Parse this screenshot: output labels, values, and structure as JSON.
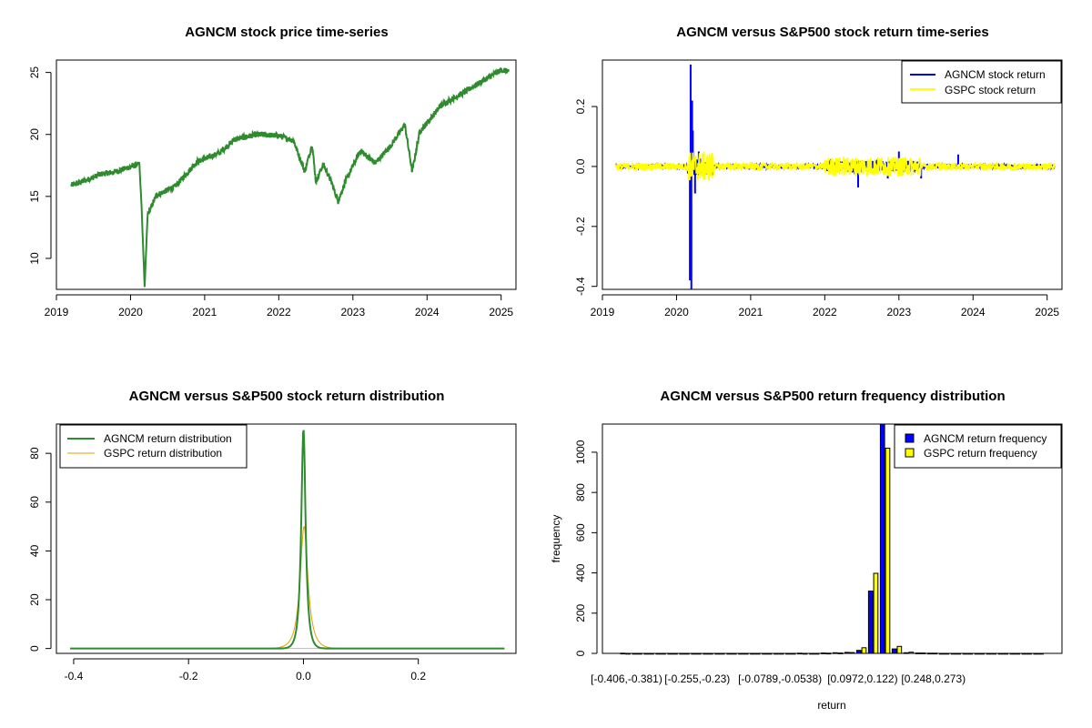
{
  "colors": {
    "green": "#2e8b2e",
    "blue": "#0000ff",
    "yellow": "#ffff00",
    "orange": "#e0a000",
    "black": "#000000"
  },
  "chart_data": [
    {
      "type": "line",
      "title": "AGNCM stock price time-series",
      "xlim": [
        2019.0,
        2025.2
      ],
      "ylim": [
        7.5,
        26
      ],
      "xticks": [
        "2019",
        "2020",
        "2021",
        "2022",
        "2023",
        "2024",
        "2025"
      ],
      "yticks": [
        "10",
        "15",
        "20",
        "25"
      ],
      "series": [
        {
          "color": "#2e8b2e",
          "points": [
            [
              2019.2,
              15.9
            ],
            [
              2019.4,
              16.3
            ],
            [
              2019.6,
              16.8
            ],
            [
              2019.8,
              17.0
            ],
            [
              2020.0,
              17.4
            ],
            [
              2020.12,
              17.6
            ],
            [
              2020.15,
              14.0
            ],
            [
              2020.19,
              7.7
            ],
            [
              2020.23,
              13.5
            ],
            [
              2020.35,
              15.1
            ],
            [
              2020.6,
              15.8
            ],
            [
              2020.9,
              17.8
            ],
            [
              2021.2,
              18.5
            ],
            [
              2021.4,
              19.6
            ],
            [
              2021.7,
              20.0
            ],
            [
              2022.0,
              19.9
            ],
            [
              2022.2,
              19.5
            ],
            [
              2022.35,
              17.0
            ],
            [
              2022.45,
              19.2
            ],
            [
              2022.5,
              16.2
            ],
            [
              2022.6,
              17.6
            ],
            [
              2022.7,
              16.3
            ],
            [
              2022.8,
              14.6
            ],
            [
              2022.9,
              16.2
            ],
            [
              2023.1,
              18.7
            ],
            [
              2023.3,
              17.7
            ],
            [
              2023.5,
              19.0
            ],
            [
              2023.7,
              20.8
            ],
            [
              2023.8,
              17.0
            ],
            [
              2023.9,
              20.2
            ],
            [
              2024.2,
              22.4
            ],
            [
              2024.5,
              23.4
            ],
            [
              2024.8,
              24.5
            ],
            [
              2025.0,
              25.2
            ],
            [
              2025.1,
              25.1
            ]
          ]
        }
      ]
    },
    {
      "type": "line",
      "title": "AGNCM versus S&P500 stock return time-series",
      "xlim": [
        2019.0,
        2025.2
      ],
      "ylim": [
        -0.41,
        0.355
      ],
      "xticks": [
        "2019",
        "2020",
        "2021",
        "2022",
        "2023",
        "2024",
        "2025"
      ],
      "yticks": [
        "-0.4",
        "-0.2",
        "0.0",
        "0.2"
      ],
      "series": [
        {
          "name": "AGNCM stock return",
          "color": "#0000ff"
        },
        {
          "name": "GSPC stock return",
          "color": "#ffff00"
        }
      ],
      "spikes_agncm": [
        [
          2020.18,
          -0.38
        ],
        [
          2020.19,
          0.34
        ],
        [
          2020.2,
          -0.41
        ],
        [
          2020.21,
          0.22
        ],
        [
          2020.22,
          0.12
        ],
        [
          2020.25,
          -0.09
        ],
        [
          2020.3,
          0.05
        ],
        [
          2022.45,
          -0.07
        ],
        [
          2022.85,
          -0.04
        ],
        [
          2023.0,
          0.05
        ],
        [
          2023.3,
          -0.04
        ],
        [
          2023.8,
          0.04
        ]
      ],
      "legend_position": "top-right"
    },
    {
      "type": "line",
      "title": "AGNCM versus S&P500 stock return distribution",
      "xlim": [
        -0.43,
        0.37
      ],
      "ylim": [
        -2,
        92
      ],
      "xticks": [
        "-0.4",
        "-0.2",
        "0.0",
        "0.2"
      ],
      "yticks": [
        "0",
        "20",
        "40",
        "60",
        "80"
      ],
      "series": [
        {
          "name": "AGNCM return distribution",
          "color": "#2e8b2e",
          "center": 0.0,
          "peak": 90,
          "width": 0.0045
        },
        {
          "name": "GSPC return distribution",
          "color": "#e0a000",
          "center": 0.001,
          "peak": 50,
          "width": 0.008
        }
      ],
      "xrange_density": [
        -0.406,
        0.35
      ],
      "legend_position": "top-left"
    },
    {
      "type": "bar",
      "title": "AGNCM versus S&P500 return frequency distribution",
      "xlabel": "return",
      "ylabel": "frequency",
      "ylim": [
        0,
        1140
      ],
      "yticks": [
        "0",
        "200",
        "400",
        "600",
        "800",
        "1000"
      ],
      "xtick_labels": [
        "[-0.406,-0.381)",
        "[-0.255,-0.23)",
        "[-0.0789,-0.0538)",
        "[0.0972,0.122)",
        "[0.248,0.273)"
      ],
      "xtick_label_bins": [
        0,
        6,
        13,
        20,
        26
      ],
      "series": [
        {
          "name": "AGNCM return frequency",
          "color": "#0000ff",
          "values": [
            1,
            0,
            0,
            0,
            0,
            0,
            0,
            0,
            0,
            0,
            0,
            0,
            0,
            0,
            0,
            1,
            0,
            2,
            3,
            5,
            15,
            310,
            1140,
            22,
            3,
            2,
            1,
            0,
            0,
            0,
            0,
            0,
            0,
            0,
            0,
            0
          ]
        },
        {
          "name": "GSPC return frequency",
          "color": "#ffff00",
          "values": [
            0,
            0,
            0,
            0,
            0,
            0,
            0,
            0,
            0,
            0,
            0,
            0,
            0,
            0,
            0,
            0,
            0,
            1,
            2,
            4,
            28,
            398,
            1020,
            35,
            6,
            2,
            1,
            0,
            0,
            0,
            0,
            0,
            0,
            0,
            0,
            0
          ]
        }
      ],
      "legend_position": "top-right"
    }
  ]
}
